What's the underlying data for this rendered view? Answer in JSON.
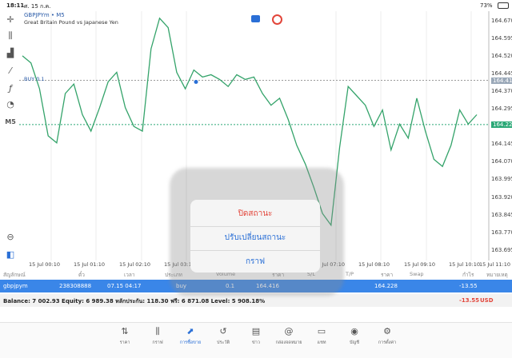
{
  "status": {
    "time": "18:11",
    "date": "ศ. 15 ก.ค.",
    "battery": "73%"
  },
  "symbol": {
    "name": "GBPJPYm • M5",
    "description": "Great Britain Pound vs Japanese Yen"
  },
  "buy_label": "BUY 0.1",
  "timeframe": "M5",
  "y_axis": {
    "labels": [
      "164.670",
      "164.595",
      "164.520",
      "164.445",
      "164.370",
      "164.295",
      "164.145",
      "164.070",
      "163.995",
      "163.920",
      "163.845",
      "163.770",
      "163.695"
    ],
    "buy_price": "164.416",
    "current_price": "164.228"
  },
  "x_axis": {
    "labels": [
      "15 Jul 00:10",
      "15 Jul 01:10",
      "15 Jul 02:10",
      "15 Jul 03:10",
      "15 Jul 07:10",
      "15 Jul 08:10",
      "15 Jul 09:10",
      "15 Jul 10:10",
      "15 Jul 11:10"
    ]
  },
  "chart_data": {
    "type": "line",
    "series": [
      {
        "values": [
          164.52,
          164.49,
          164.38,
          164.18,
          164.15,
          164.36,
          164.4,
          164.27,
          164.2,
          164.3,
          164.41,
          164.45,
          164.3,
          164.22,
          164.2,
          164.55,
          164.68,
          164.64,
          164.45,
          164.38,
          164.46,
          164.43,
          164.44,
          164.42,
          164.39,
          164.44,
          164.42,
          164.43,
          164.36,
          164.31,
          164.34,
          164.25,
          164.14,
          164.06,
          163.96,
          163.85,
          163.8,
          164.13,
          164.39,
          164.35,
          164.31,
          164.22,
          164.29,
          164.12,
          164.23,
          164.17,
          164.34,
          164.2,
          164.08,
          164.05,
          164.14,
          164.29,
          164.23,
          164.27
        ]
      }
    ],
    "ylim": [
      163.65,
      164.71
    ],
    "buy_level": 164.416,
    "current_level": 164.228
  },
  "popup": {
    "close": "ปิดสถานะ",
    "modify": "ปรับเปลี่ยนสถานะ",
    "chart": "กราฟ"
  },
  "table": {
    "headers": [
      "สัญลักษณ์",
      "ตั๋ว",
      "เวลา",
      "ประเภท",
      "Volume",
      "ราคา",
      "S/L",
      "T/P",
      "ราคา",
      "Swap",
      "กำไร",
      "หมายเหตุ"
    ],
    "row": {
      "symbol": "gbpjpym",
      "ticket": "238308888",
      "time": "07.15 04:17",
      "type": "buy",
      "volume": "0.1",
      "open_price": "164.416",
      "price": "164.228",
      "profit": "-13.55"
    }
  },
  "balance": {
    "text": "Balance: 7 002.93 Equity: 6 989.38 หลักประกัน: 118.30 ฟรี: 6 871.08 Level: 5 908.18%",
    "profit": "-13.55",
    "currency": "USD"
  },
  "nav": [
    {
      "label": "ราคา",
      "icon": "arrows-icon"
    },
    {
      "label": "กราฟ",
      "icon": "candles-icon"
    },
    {
      "label": "การซื้อขาย",
      "icon": "trade-icon",
      "active": true
    },
    {
      "label": "ประวัติ",
      "icon": "history-icon"
    },
    {
      "label": "ข่าว",
      "icon": "news-icon"
    },
    {
      "label": "กล่องจดหมาย",
      "icon": "mail-icon"
    },
    {
      "label": "แชท",
      "icon": "chat-icon"
    },
    {
      "label": "บัญชี",
      "icon": "account-icon"
    },
    {
      "label": "การตั้งค่า",
      "icon": "settings-icon"
    }
  ],
  "colors": {
    "line": "#34a36a",
    "accent": "#3a86e8",
    "sell": "#e2453a",
    "current": "#2aa876"
  }
}
